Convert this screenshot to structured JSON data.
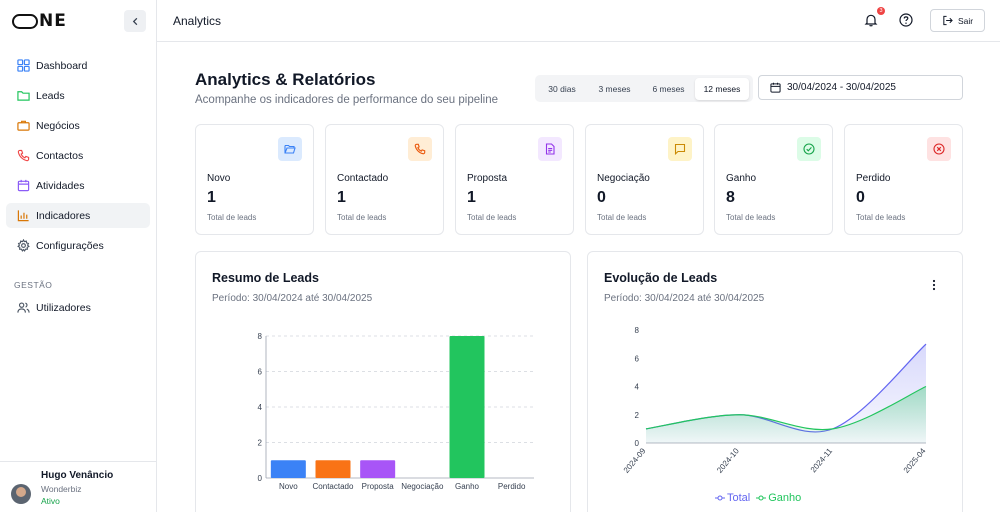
{
  "app": {
    "logo_text": "NE"
  },
  "sidebar": {
    "items": [
      {
        "label": "Dashboard",
        "icon": "grid-icon",
        "color": "#3b82f6"
      },
      {
        "label": "Leads",
        "icon": "folder-icon",
        "color": "#22c55e"
      },
      {
        "label": "Negócios",
        "icon": "briefcase-icon",
        "color": "#d97706"
      },
      {
        "label": "Contactos",
        "icon": "phone-icon",
        "color": "#ef4444"
      },
      {
        "label": "Atividades",
        "icon": "calendar-icon",
        "color": "#8b5cf6"
      },
      {
        "label": "Indicadores",
        "icon": "bar-chart-icon",
        "color": "#d97706"
      },
      {
        "label": "Configurações",
        "icon": "gear-icon",
        "color": "#4b5563"
      }
    ],
    "section_title": "GESTÃO",
    "section_items": [
      {
        "label": "Utilizadores",
        "icon": "users-icon",
        "color": "#4b5563"
      }
    ],
    "user": {
      "name": "Hugo Venâncio",
      "company": "Wonderbiz",
      "status": "Ativo"
    }
  },
  "header": {
    "title": "Analytics",
    "notification_count": "3",
    "logout_label": "Sair"
  },
  "page": {
    "title": "Analytics & Relatórios",
    "subtitle": "Acompanhe os indicadores de performance do seu pipeline",
    "ranges": [
      "30 dias",
      "3 meses",
      "6 meses",
      "12 meses"
    ],
    "selected_range": "12 meses",
    "date_range": "30/04/2024 - 30/04/2025"
  },
  "cards": [
    {
      "label": "Novo",
      "value": "1",
      "sub": "Total de leads",
      "icon": "folder-open-icon",
      "color": "#3b82f6",
      "bg": "#dbeafe"
    },
    {
      "label": "Contactado",
      "value": "1",
      "sub": "Total de leads",
      "icon": "phone-icon",
      "color": "#ea580c",
      "bg": "#ffedd5"
    },
    {
      "label": "Proposta",
      "value": "1",
      "sub": "Total de leads",
      "icon": "document-icon",
      "color": "#9333ea",
      "bg": "#f3e8ff"
    },
    {
      "label": "Negociação",
      "value": "0",
      "sub": "Total de leads",
      "icon": "message-icon",
      "color": "#ca8a04",
      "bg": "#fef3c7"
    },
    {
      "label": "Ganho",
      "value": "8",
      "sub": "Total de leads",
      "icon": "check-circle-icon",
      "color": "#16a34a",
      "bg": "#dcfce7"
    },
    {
      "label": "Perdido",
      "value": "0",
      "sub": "Total de leads",
      "icon": "x-circle-icon",
      "color": "#dc2626",
      "bg": "#fee2e2"
    }
  ],
  "panels": {
    "summary": {
      "title": "Resumo de Leads",
      "period": "Período: 30/04/2024 até 30/04/2025"
    },
    "evolution": {
      "title": "Evolução de Leads",
      "period": "Período: 30/04/2024 até 30/04/2025"
    }
  },
  "chart_data": [
    {
      "type": "bar",
      "categories": [
        "Novo",
        "Contactado",
        "Proposta",
        "Negociação",
        "Ganho",
        "Perdido"
      ],
      "values": [
        1,
        1,
        1,
        0,
        8,
        0
      ],
      "colors": [
        "#3b82f6",
        "#f97316",
        "#a855f7",
        "#eab308",
        "#22c55e",
        "#ef4444"
      ],
      "yticks": [
        0,
        2,
        4,
        6,
        8
      ],
      "ylim": [
        0,
        8
      ],
      "grid": true
    },
    {
      "type": "area",
      "x": [
        "2024-09",
        "2024-10",
        "2024-11",
        "2025-04"
      ],
      "series": [
        {
          "name": "Total",
          "color": "#6366f1",
          "values": [
            1,
            2,
            1,
            7
          ]
        },
        {
          "name": "Ganho",
          "color": "#22c55e",
          "values": [
            1,
            2,
            1,
            4
          ]
        }
      ],
      "yticks": [
        0,
        2,
        4,
        6,
        8
      ],
      "ylim": [
        0,
        8
      ],
      "legend": "bottom",
      "grid": false
    }
  ]
}
